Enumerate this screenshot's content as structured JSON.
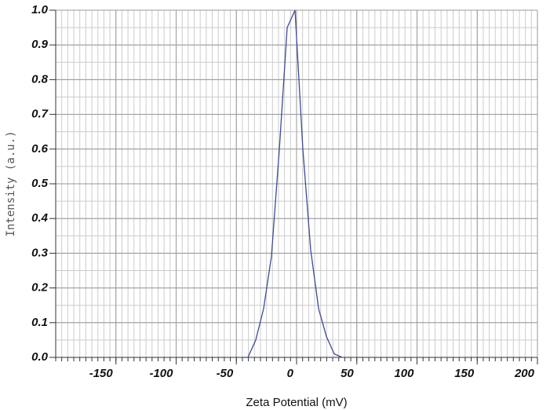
{
  "chart_data": {
    "type": "line",
    "x_label": "Zeta Potential (mV)",
    "y_label": "Intensity (a.u.)",
    "xlim": [
      -200,
      200
    ],
    "xticks": [
      -150,
      -100,
      -50,
      0,
      50,
      100,
      150,
      200
    ],
    "ylim": [
      0,
      1
    ],
    "yticks": [
      {
        "value": 0,
        "label": "0.0"
      },
      0.1,
      0.2,
      0.3,
      0.4,
      0.5,
      0.6,
      0.7,
      0.8,
      0.9,
      {
        "value": 1,
        "label": "1.0"
      }
    ],
    "grid": true,
    "series": [
      {
        "color": "#3b4a9a",
        "x": [
          -45.6,
          -40.4,
          -33.9,
          -27.4,
          -20.9,
          -14.3,
          -7.8,
          -1.3,
          5.2,
          11.7,
          18.3,
          24.8,
          31.3,
          37.8
        ],
        "values": [
          0,
          0,
          0.05,
          0.14,
          0.29,
          0.6,
          0.95,
          1.0,
          0.6,
          0.31,
          0.14,
          0.06,
          0.01,
          0
        ]
      }
    ]
  }
}
